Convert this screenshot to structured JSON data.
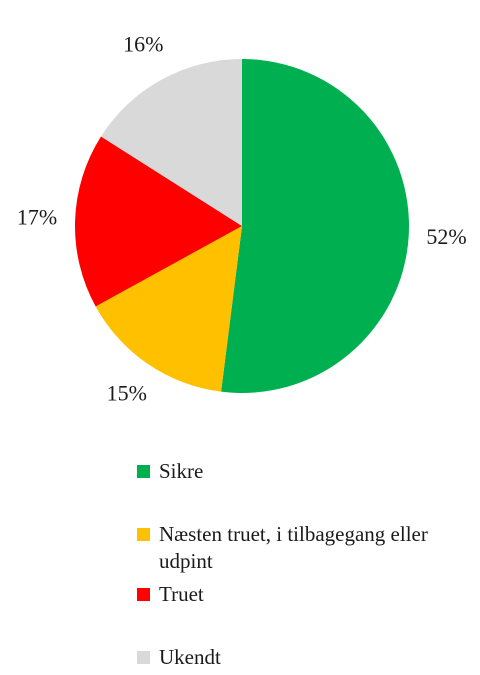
{
  "chart_data": {
    "type": "pie",
    "title": "",
    "categories": [
      "Sikre",
      "Næsten truet, i tilbagegang eller udpint",
      "Truet",
      "Ukendt"
    ],
    "values": [
      52,
      15,
      17,
      16
    ],
    "value_labels": [
      "52%",
      "15%",
      "17%",
      "16%"
    ],
    "colors": [
      "#00b050",
      "#ffc000",
      "#ff0000",
      "#d9d9d9"
    ],
    "start": "12 o'clock",
    "direction": "clockwise",
    "legend_position": "bottom"
  },
  "legend": {
    "items": [
      {
        "label": "Sikre"
      },
      {
        "label": "Næsten truet, i tilbagegang eller udpint"
      },
      {
        "label": "Truet"
      },
      {
        "label": "Ukendt"
      }
    ]
  }
}
